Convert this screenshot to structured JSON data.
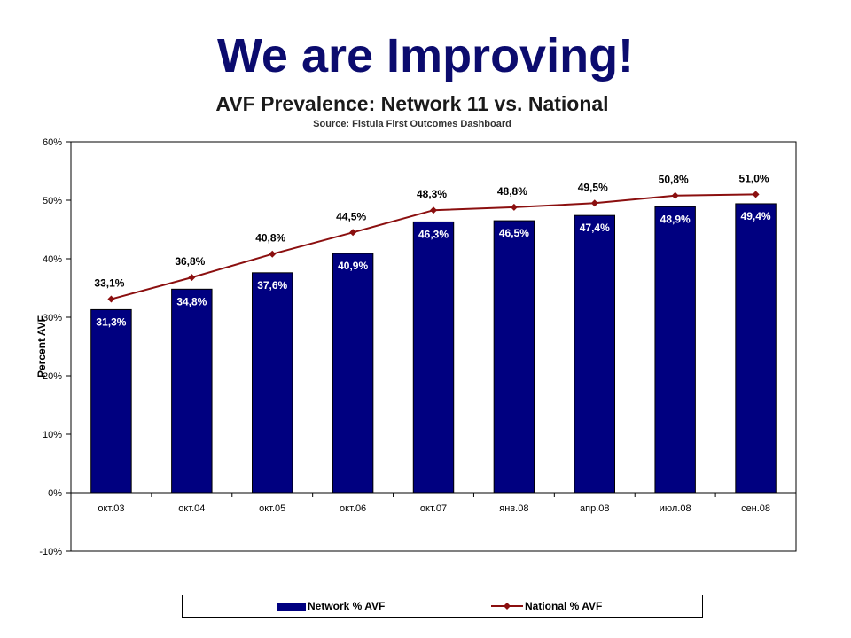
{
  "slide": {
    "title": "We are Improving!"
  },
  "chart_data": {
    "type": "bar",
    "title": "AVF Prevalence:  Network 11 vs. National",
    "subtitle": "Source:  Fistula First Outcomes Dashboard",
    "xlabel": "",
    "ylabel": "Percent AVF",
    "ylim": [
      -10,
      60
    ],
    "yticks": [
      -10,
      0,
      10,
      20,
      30,
      40,
      50,
      60
    ],
    "ytick_labels": [
      "-10%",
      "0%",
      "10%",
      "20%",
      "30%",
      "40%",
      "50%",
      "60%"
    ],
    "categories": [
      "окт.03",
      "окт.04",
      "окт.05",
      "окт.06",
      "окт.07",
      "янв.08",
      "апр.08",
      "июл.08",
      "сен.08"
    ],
    "grid": false,
    "legend_position": "bottom",
    "series": [
      {
        "name": "Network % AVF",
        "type": "bar",
        "color": "#000080",
        "values": [
          31.3,
          34.8,
          37.6,
          40.9,
          46.3,
          46.5,
          47.4,
          48.9,
          49.4
        ],
        "labels": [
          "31,3%",
          "34,8%",
          "37,6%",
          "40,9%",
          "46,3%",
          "46,5%",
          "47,4%",
          "48,9%",
          "49,4%"
        ]
      },
      {
        "name": "National % AVF",
        "type": "line",
        "color": "#8b0f0f",
        "marker": "diamond",
        "values": [
          33.1,
          36.8,
          40.8,
          44.5,
          48.3,
          48.8,
          49.5,
          50.8,
          51.0
        ],
        "labels": [
          "33,1%",
          "36,8%",
          "40,8%",
          "44,5%",
          "48,3%",
          "48,8%",
          "49,5%",
          "50,8%",
          "51,0%"
        ]
      }
    ]
  }
}
